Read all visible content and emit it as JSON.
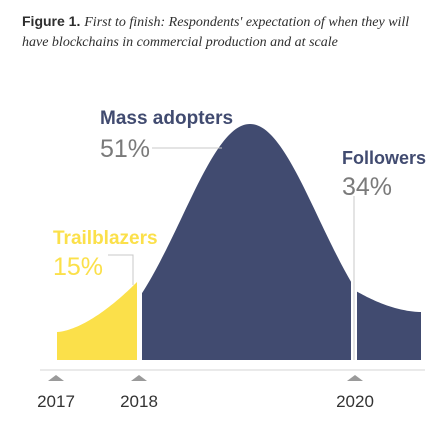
{
  "figure": {
    "number": "Figure 1.",
    "caption": "First to finish: Respondents' expectation of when they will have blockchains in commercial production and at scale"
  },
  "colors": {
    "trailblazers": "#fbe04a",
    "mass_adopters": "#414b70",
    "followers": "#414b70",
    "label_title": "#414b70",
    "label_value": "#7a7a7a",
    "leader_line": "#c8c8c8",
    "axis_tick": "#9a9a9a",
    "axis_line": "#d4d4d4"
  },
  "chart_data": {
    "type": "area",
    "title": "First to finish: Respondents' expectation of when they will have blockchains in commercial production and at scale",
    "x_ticks": [
      "2017",
      "2018",
      "2020"
    ],
    "series": [
      {
        "name": "Trailblazers",
        "value": 15,
        "value_label": "15%"
      },
      {
        "name": "Mass adopters",
        "value": 51,
        "value_label": "51%"
      },
      {
        "name": "Followers",
        "value": 34,
        "value_label": "34%"
      }
    ],
    "legend": "inline labels"
  }
}
